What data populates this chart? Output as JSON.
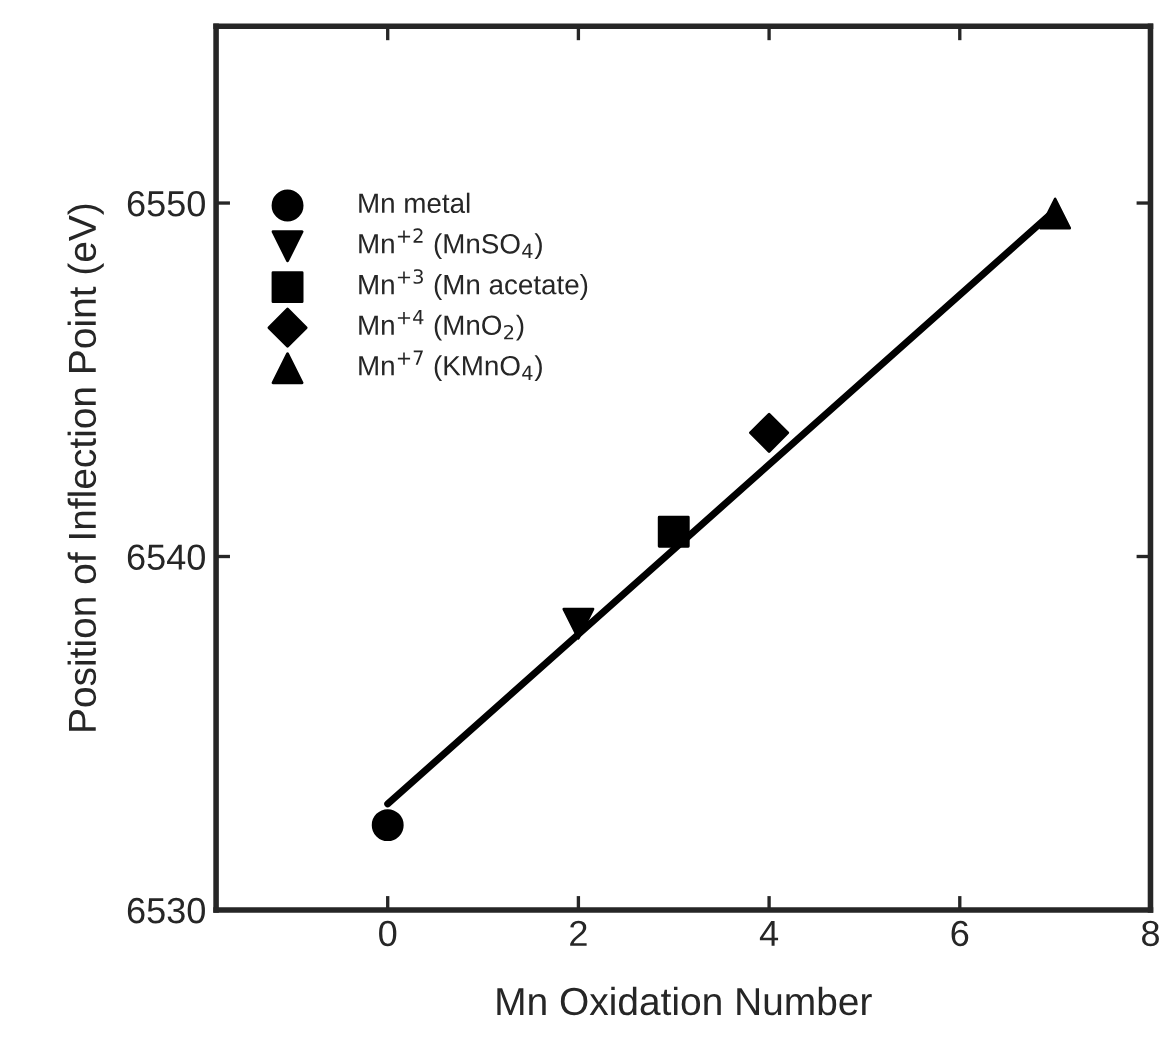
{
  "chart_data": {
    "type": "scatter",
    "xlabel": "Mn Oxidation Number",
    "ylabel": "Position of Inflection Point (eV)",
    "xlim": [
      -1.8,
      8
    ],
    "xticks": [
      0,
      2,
      4,
      6,
      8
    ],
    "ylim": [
      6530,
      6555
    ],
    "yticks": [
      6530,
      6540,
      6550
    ],
    "grid": false,
    "legend": "top left",
    "series": [
      {
        "name": "Mn metal",
        "color": "#000000",
        "marker": "circle",
        "x": [
          0
        ],
        "values": [
          6532.4
        ]
      },
      {
        "name": "Mn$^{+2}$ (MnSO$_{4}$)",
        "color": "#000000",
        "marker": "triangle_down",
        "x": [
          2
        ],
        "values": [
          6538.1
        ]
      },
      {
        "name": "Mn$^{+3}$ (Mn acetate)",
        "color": "#000000",
        "marker": "square",
        "x": [
          3
        ],
        "values": [
          6540.7
        ]
      },
      {
        "name": "Mn$^{+4}$ (MnO$_{2}$)",
        "color": "#000000",
        "marker": "diamond",
        "x": [
          4
        ],
        "values": [
          6543.5
        ]
      },
      {
        "name": "Mn$^{+7}$ (KMnO$_{4}$)",
        "color": "#000000",
        "marker": "triangle",
        "x": [
          7
        ],
        "values": [
          6549.7
        ]
      },
      {
        "type": "line",
        "color": "#000000",
        "line_style": "solid",
        "marker": "none",
        "x": [
          0,
          7
        ],
        "values": [
          6533.0,
          6549.8
        ]
      }
    ]
  }
}
